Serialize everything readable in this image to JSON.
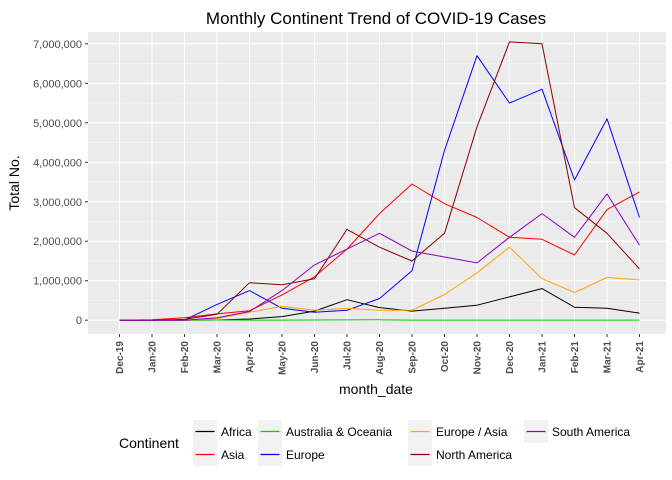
{
  "chart_data": {
    "type": "line",
    "title": "Monthly Continent Trend of COVID-19 Cases",
    "xlabel": "month_date",
    "ylabel": "Total No.",
    "ylim": [
      -350000,
      7300000
    ],
    "yticks": [
      0,
      1000000,
      2000000,
      3000000,
      4000000,
      5000000,
      6000000,
      7000000
    ],
    "ytick_labels": [
      "0",
      "1,000,000",
      "2,000,000",
      "3,000,000",
      "4,000,000",
      "5,000,000",
      "6,000,000",
      "7,000,000"
    ],
    "categories": [
      "Dec-19",
      "Jan-20",
      "Feb-20",
      "Mar-20",
      "Apr-20",
      "May-20",
      "Jun-20",
      "Jul-20",
      "Aug-20",
      "Sep-20",
      "Oct-20",
      "Nov-20",
      "Dec-20",
      "Jan-21",
      "Feb-21",
      "Mar-21",
      "Apr-21"
    ],
    "grid": true,
    "background": "#ebebeb",
    "legend": {
      "title": "Continent",
      "placement": "bottom",
      "columns": [
        [
          "Africa",
          "Asia"
        ],
        [
          "Australia & Oceania",
          "Europe"
        ],
        [
          "Europe / Asia",
          "North America"
        ],
        [
          "South America"
        ]
      ]
    },
    "series": [
      {
        "name": "Africa",
        "color": "#000000",
        "values": [
          0,
          0,
          2000,
          5000,
          30000,
          90000,
          230000,
          520000,
          320000,
          230000,
          300000,
          380000,
          590000,
          800000,
          330000,
          300000,
          180000
        ]
      },
      {
        "name": "Asia",
        "color": "#ff0000",
        "values": [
          0,
          10000,
          60000,
          160000,
          240000,
          640000,
          1100000,
          1800000,
          2700000,
          3450000,
          2950000,
          2600000,
          2100000,
          2050000,
          1650000,
          2800000,
          3250000
        ]
      },
      {
        "name": "Australia & Oceania",
        "color": "#00cc00",
        "values": [
          0,
          0,
          0,
          4000,
          3000,
          1000,
          5000,
          8000,
          10000,
          3000,
          2000,
          2000,
          3000,
          3000,
          1000,
          1000,
          1000
        ]
      },
      {
        "name": "Europe",
        "color": "#0000ff",
        "values": [
          0,
          0,
          3000,
          400000,
          750000,
          300000,
          200000,
          250000,
          550000,
          1250000,
          4300000,
          6700000,
          5500000,
          5850000,
          3550000,
          5100000,
          2600000
        ]
      },
      {
        "name": "Europe / Asia",
        "color": "#ffa500",
        "values": [
          0,
          0,
          0,
          40000,
          200000,
          350000,
          250000,
          300000,
          250000,
          250000,
          650000,
          1200000,
          1850000,
          1050000,
          700000,
          1080000,
          1020000
        ]
      },
      {
        "name": "North America",
        "color": "#8b0000",
        "values": [
          0,
          0,
          20000,
          150000,
          950000,
          900000,
          1050000,
          2300000,
          1850000,
          1500000,
          2200000,
          4900000,
          7050000,
          7000000,
          2850000,
          2200000,
          1300000
        ]
      },
      {
        "name": "South America",
        "color": "#8b00c8",
        "values": [
          0,
          0,
          0,
          60000,
          220000,
          750000,
          1400000,
          1800000,
          2200000,
          1750000,
          1600000,
          1450000,
          2100000,
          2700000,
          2100000,
          3200000,
          1900000
        ]
      }
    ]
  }
}
